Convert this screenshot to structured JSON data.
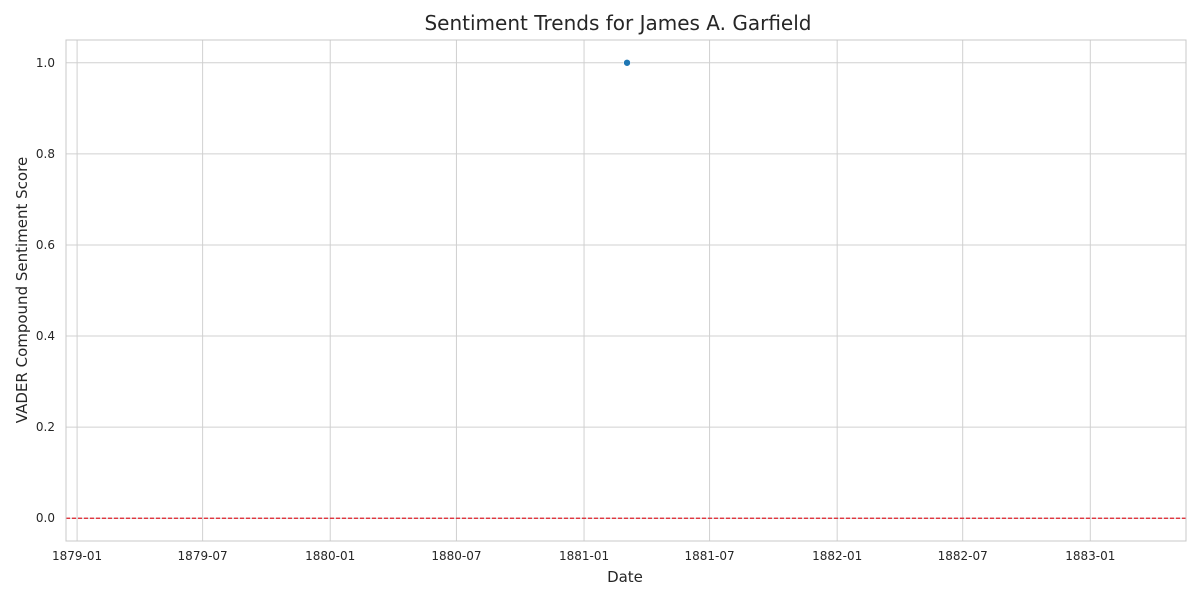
{
  "chart_data": {
    "type": "scatter",
    "title": "Sentiment Trends for James A. Garfield",
    "xlabel": "Date",
    "ylabel": "VADER Compound Sentiment Score",
    "x_axis_type": "date",
    "xlim": [
      "1878-12-16",
      "1883-05-19"
    ],
    "ylim": [
      -0.05,
      1.05
    ],
    "x_ticks": [
      "1879-01",
      "1879-07",
      "1880-01",
      "1880-07",
      "1881-01",
      "1881-07",
      "1882-01",
      "1882-07",
      "1883-01"
    ],
    "y_ticks": [
      "0.0",
      "0.2",
      "0.4",
      "0.6",
      "0.8",
      "1.0"
    ],
    "series": [
      {
        "points": [
          {
            "x": "1881-03-04",
            "y": 1.0
          }
        ]
      }
    ],
    "reference_lines": [
      {
        "axis": "y",
        "value": 0.0,
        "style": "dashed",
        "color": "#e0202a"
      }
    ],
    "grid": true,
    "colors": {
      "point": "#1f77b4",
      "reference_line": "#e0202a",
      "grid": "#d0d0d0",
      "spine": "#c8c8c8",
      "text": "#262626"
    }
  }
}
